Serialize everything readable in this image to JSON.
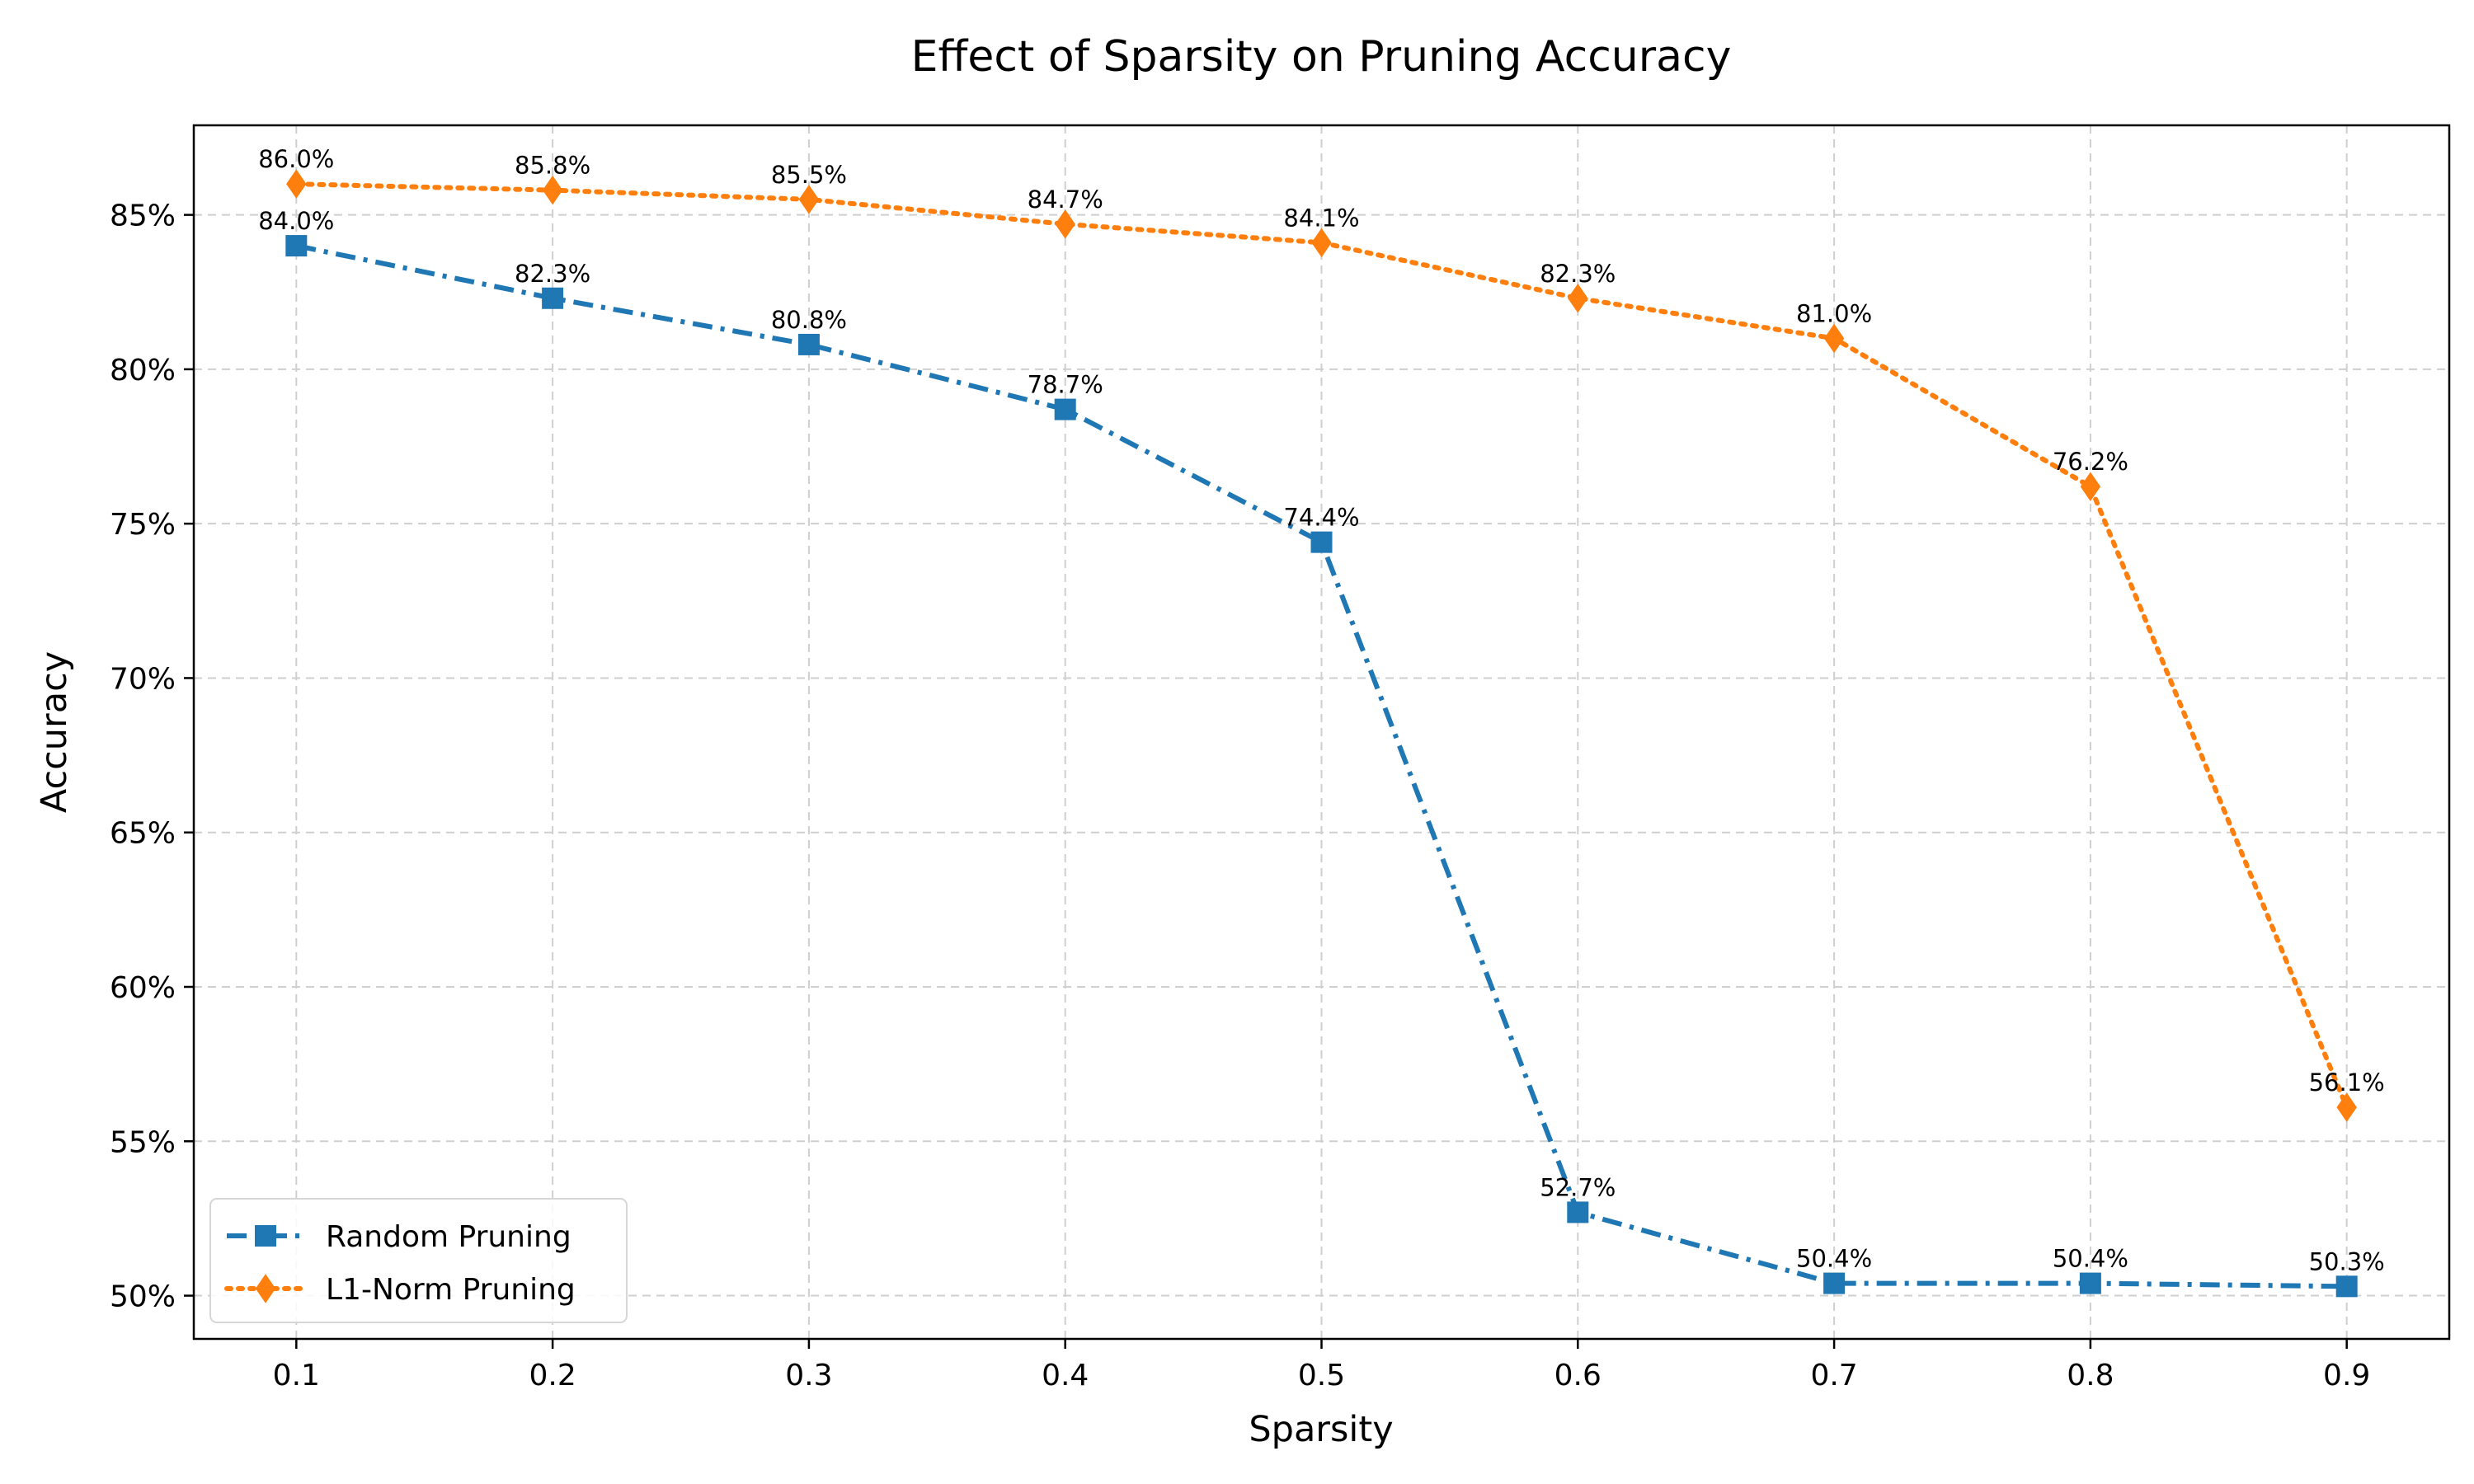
{
  "chart_data": {
    "type": "line",
    "title": "Effect of Sparsity on Pruning Accuracy",
    "xlabel": "Sparsity",
    "ylabel": "Accuracy",
    "x": [
      0.1,
      0.2,
      0.3,
      0.4,
      0.5,
      0.6,
      0.7,
      0.8,
      0.9
    ],
    "x_tick_labels": [
      "0.1",
      "0.2",
      "0.3",
      "0.4",
      "0.5",
      "0.6",
      "0.7",
      "0.8",
      "0.9"
    ],
    "xlim": [
      0.06,
      0.94
    ],
    "y_ticks": [
      50,
      55,
      60,
      65,
      70,
      75,
      80,
      85
    ],
    "y_tick_labels": [
      "50%",
      "55%",
      "60%",
      "65%",
      "70%",
      "75%",
      "80%",
      "85%"
    ],
    "ylim": [
      48.6,
      87.9
    ],
    "grid": true,
    "legend_position": "lower-left",
    "series": [
      {
        "name": "Random Pruning",
        "color": "#1f77b4",
        "marker": "square",
        "line_style": "dash-dot",
        "values": [
          84.0,
          82.3,
          80.8,
          78.7,
          74.4,
          52.7,
          50.4,
          50.4,
          50.3
        ],
        "labels": [
          "84.0%",
          "82.3%",
          "80.8%",
          "78.7%",
          "74.4%",
          "52.7%",
          "50.4%",
          "50.4%",
          "50.3%"
        ]
      },
      {
        "name": "L1-Norm Pruning",
        "color": "#ff7f0e",
        "marker": "diamond",
        "line_style": "dotted",
        "values": [
          86.0,
          85.8,
          85.5,
          84.7,
          84.1,
          82.3,
          81.0,
          76.2,
          56.1
        ],
        "labels": [
          "86.0%",
          "85.8%",
          "85.5%",
          "84.7%",
          "84.1%",
          "82.3%",
          "81.0%",
          "76.2%",
          "56.1%"
        ]
      }
    ]
  }
}
